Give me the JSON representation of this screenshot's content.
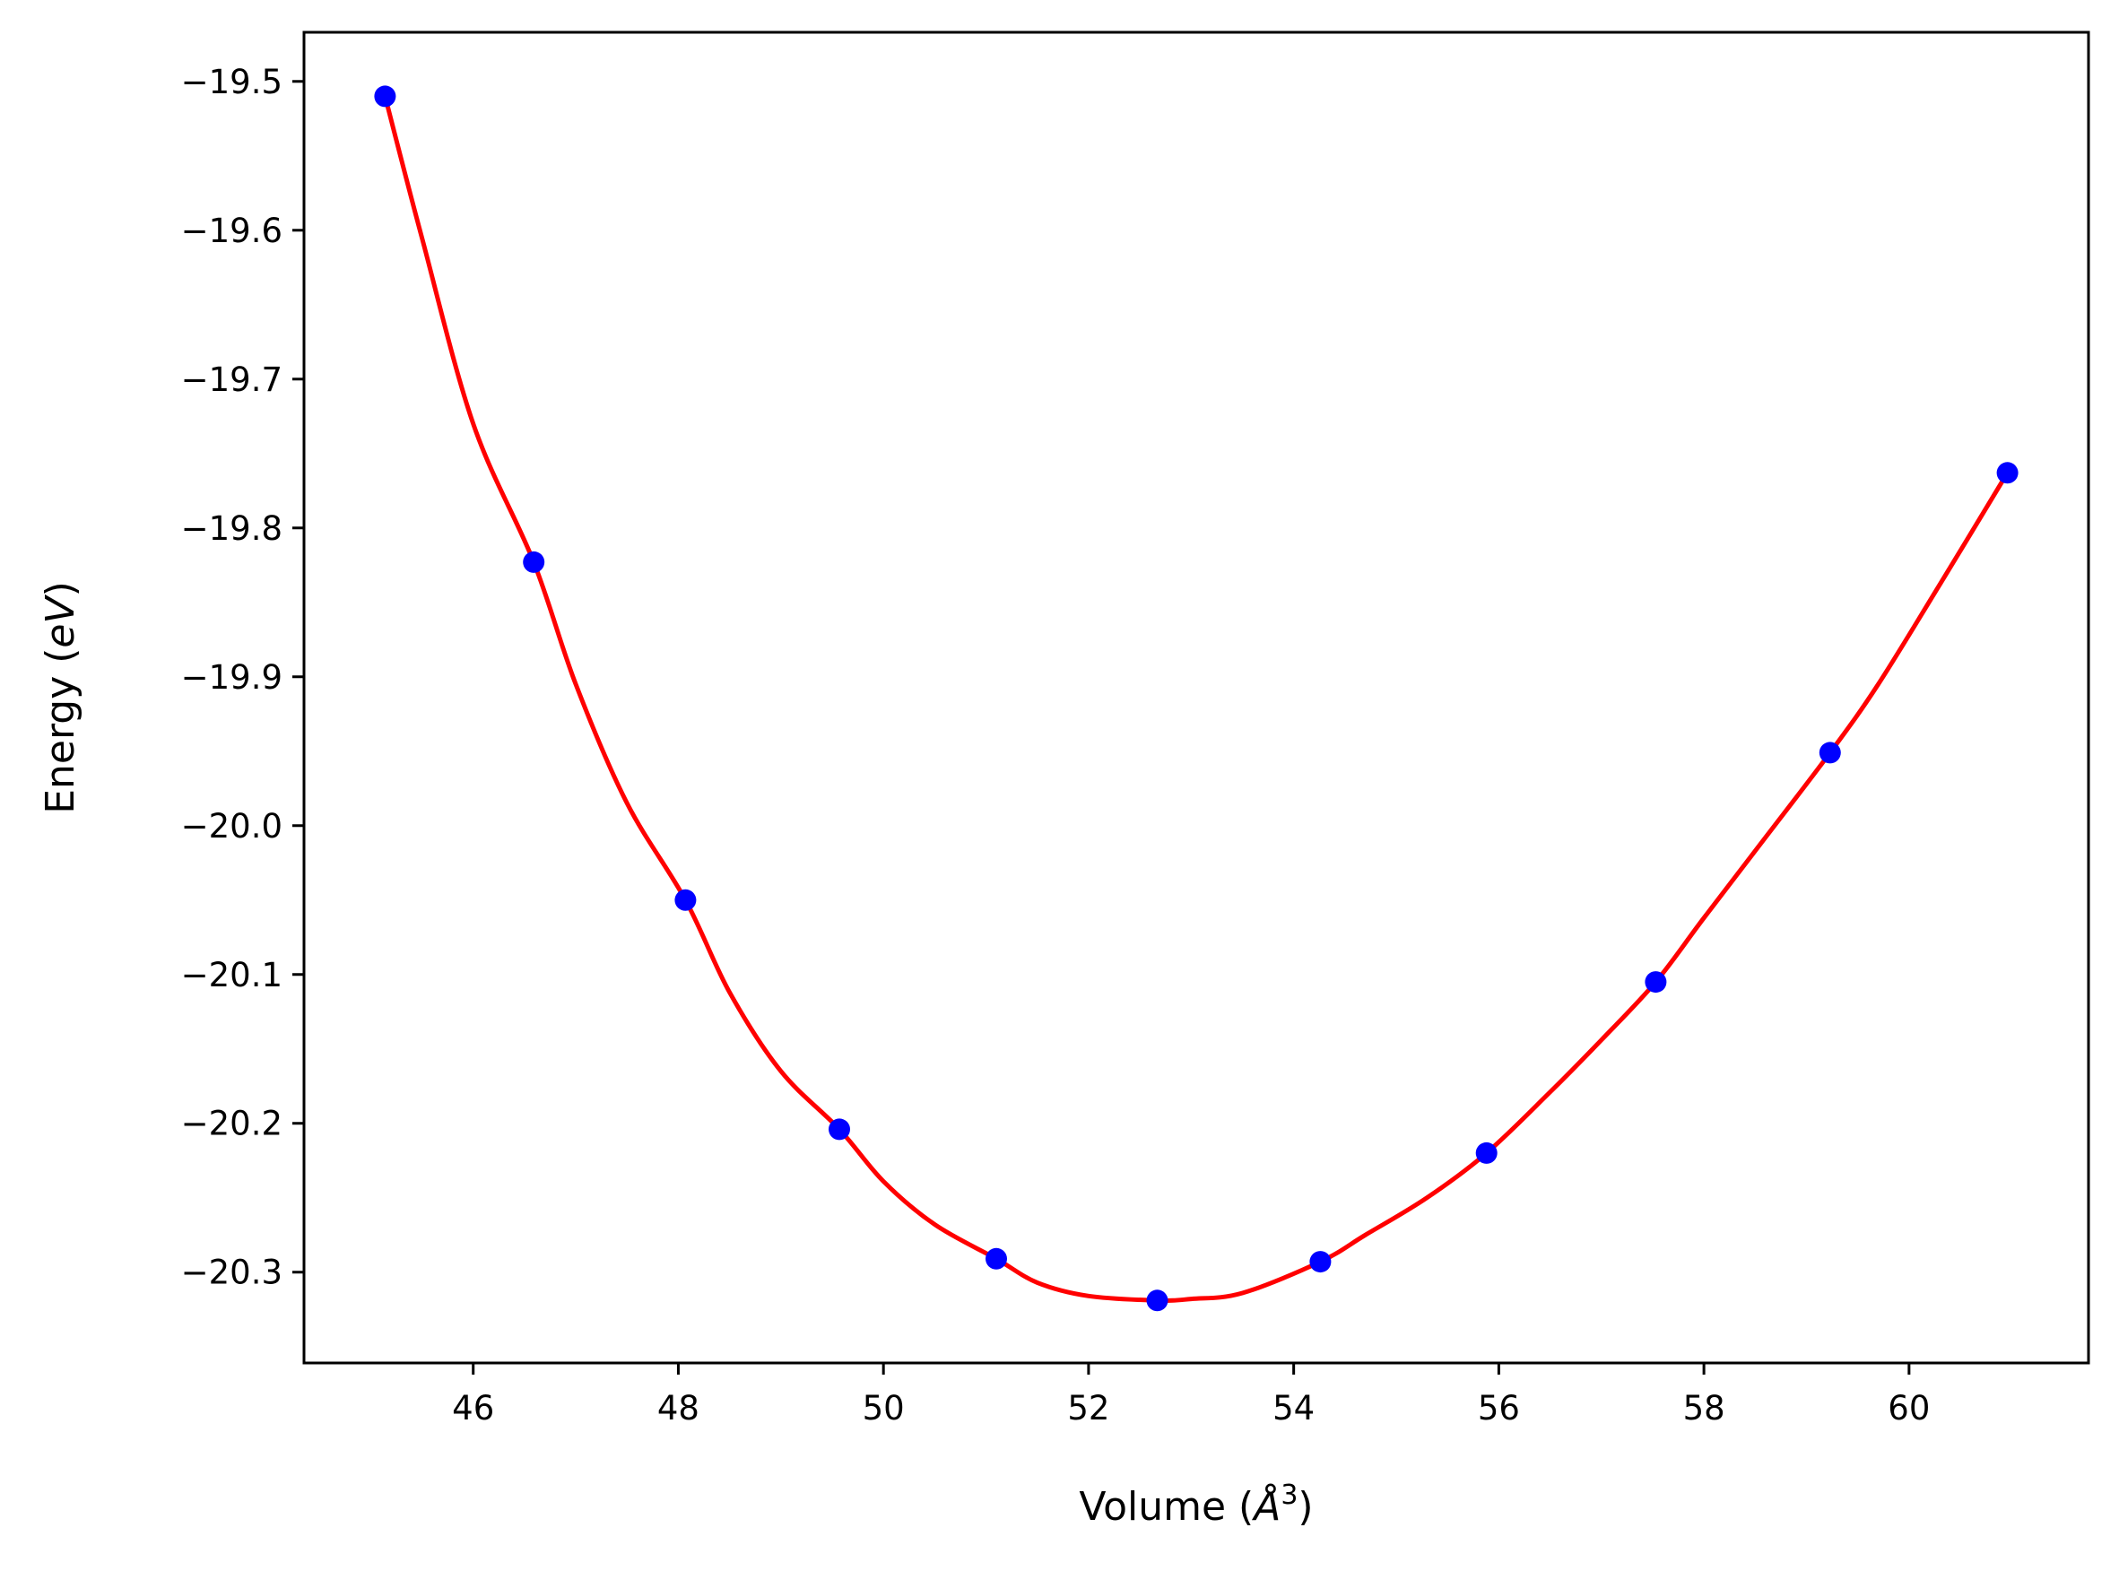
{
  "chart_data": {
    "type": "scatter",
    "xlabel": {
      "prefix": "Volume (",
      "symbol": "Å",
      "sup": "3",
      "suffix": ")"
    },
    "ylabel": {
      "prefix": "Energy (",
      "symbol": "eV",
      "suffix": ")"
    },
    "xlim": [
      44.35,
      61.75
    ],
    "ylim": [
      -20.361,
      -19.467
    ],
    "xticks": [
      46,
      48,
      50,
      52,
      54,
      56,
      58,
      60
    ],
    "xtick_labels": [
      "46",
      "48",
      "50",
      "52",
      "54",
      "56",
      "58",
      "60"
    ],
    "yticks": [
      -20.3,
      -20.2,
      -20.1,
      -20.0,
      -19.9,
      -19.8,
      -19.7,
      -19.6,
      -19.5
    ],
    "ytick_labels": [
      "−20.3",
      "−20.2",
      "−20.1",
      "−20.0",
      "−19.9",
      "−19.8",
      "−19.7",
      "−19.6",
      "−19.5"
    ],
    "grid": false,
    "series": [
      {
        "kind": "points",
        "color": "#0000ff",
        "x": [
          45.14,
          46.59,
          48.07,
          49.57,
          51.1,
          52.67,
          54.26,
          55.88,
          57.53,
          59.23,
          60.96
        ],
        "y": [
          -19.51,
          -19.823,
          -20.05,
          -20.204,
          -20.291,
          -20.319,
          -20.293,
          -20.22,
          -20.105,
          -19.951,
          -19.763
        ]
      },
      {
        "kind": "fit-curve",
        "color": "#ff0000",
        "x": [
          45.14,
          45.5,
          46.0,
          46.59,
          47.0,
          47.5,
          48.07,
          48.5,
          49.0,
          49.57,
          50.0,
          50.5,
          51.1,
          51.5,
          52.0,
          52.67,
          53.0,
          53.5,
          54.26,
          54.7,
          55.3,
          55.88,
          56.5,
          57.0,
          57.53,
          58.0,
          58.6,
          59.23,
          59.7,
          60.3,
          60.96
        ],
        "y": [
          -19.51,
          -19.605,
          -19.73,
          -19.823,
          -19.905,
          -19.985,
          -20.05,
          -20.112,
          -20.165,
          -20.204,
          -20.239,
          -20.268,
          -20.291,
          -20.307,
          -20.316,
          -20.319,
          -20.318,
          -20.314,
          -20.293,
          -20.275,
          -20.25,
          -20.22,
          -20.179,
          -20.144,
          -20.105,
          -20.062,
          -20.008,
          -19.951,
          -19.905,
          -19.838,
          -19.763
        ]
      }
    ]
  }
}
